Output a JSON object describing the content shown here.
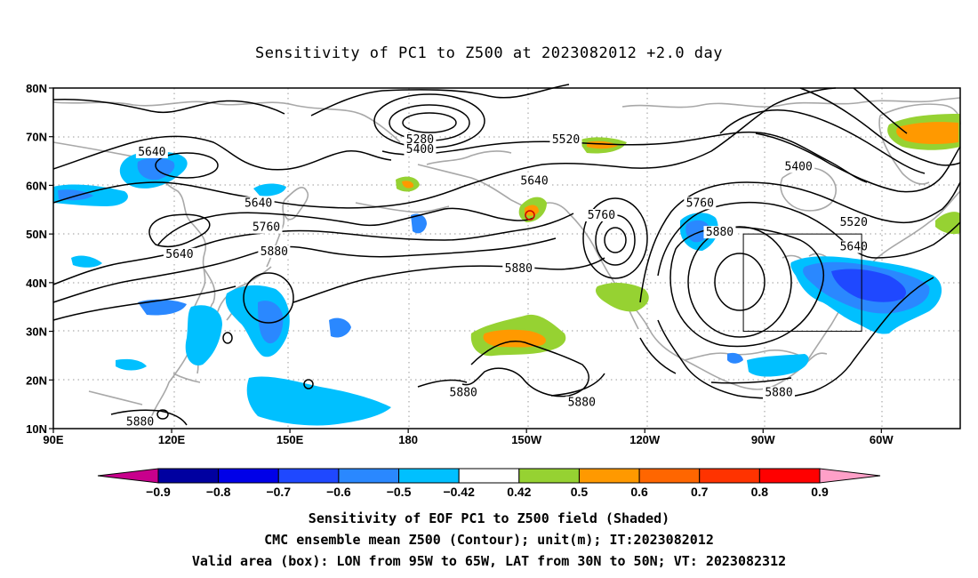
{
  "title": "Sensitivity of PC1 to Z500 at 2023082012 +2.0 day",
  "map": {
    "lat_ticks": [
      "80N",
      "70N",
      "60N",
      "50N",
      "40N",
      "30N",
      "20N",
      "10N"
    ],
    "lon_ticks": [
      "90E",
      "120E",
      "150E",
      "180",
      "150W",
      "120W",
      "90W",
      "60W"
    ],
    "contour_labels": [
      {
        "text": "5640",
        "lon": 115,
        "lat": 66.5
      },
      {
        "text": "5280",
        "lon": 183,
        "lat": 69
      },
      {
        "text": "5400",
        "lon": 183,
        "lat": 67
      },
      {
        "text": "5520",
        "lon": 220,
        "lat": 69
      },
      {
        "text": "5640",
        "lon": 212,
        "lat": 60.5
      },
      {
        "text": "5400",
        "lon": 279,
        "lat": 63.5
      },
      {
        "text": "5640",
        "lon": 142,
        "lat": 56
      },
      {
        "text": "5760",
        "lon": 144,
        "lat": 51
      },
      {
        "text": "5640",
        "lon": 122,
        "lat": 45.5
      },
      {
        "text": "5880",
        "lon": 146,
        "lat": 46
      },
      {
        "text": "5760",
        "lon": 229,
        "lat": 53.5
      },
      {
        "text": "5760",
        "lon": 254,
        "lat": 56
      },
      {
        "text": "5880",
        "lon": 259,
        "lat": 50
      },
      {
        "text": "5880",
        "lon": 208,
        "lat": 42.5
      },
      {
        "text": "5520",
        "lon": 293,
        "lat": 52
      },
      {
        "text": "5640",
        "lon": 293,
        "lat": 47
      },
      {
        "text": "5880",
        "lon": 194,
        "lat": 17
      },
      {
        "text": "5880",
        "lon": 224,
        "lat": 15
      },
      {
        "text": "5880",
        "lon": 274,
        "lat": 17
      },
      {
        "text": "5880",
        "lon": 112,
        "lat": 11
      }
    ],
    "valid_box": {
      "lon_min": 265,
      "lon_max": 295,
      "lat_min": 30,
      "lat_max": 50
    }
  },
  "colorbar": {
    "labels": [
      "-0.9",
      "-0.8",
      "-0.7",
      "-0.6",
      "-0.5",
      "-0.42",
      "0.42",
      "0.5",
      "0.6",
      "0.7",
      "0.8",
      "0.9"
    ],
    "colors": [
      "#c8008c",
      "#0000a0",
      "#0000e8",
      "#1f48ff",
      "#2a88ff",
      "#00c0ff",
      "#ffffff",
      "#96d232",
      "#ff9900",
      "#ff6600",
      "#ff3300",
      "#ff0000",
      "#ffa0c8"
    ]
  },
  "caption": {
    "line1": "Sensitivity of EOF PC1 to Z500 field (Shaded)",
    "line2": "CMC ensemble mean Z500 (Contour); unit(m); IT:2023082012",
    "line3": "Valid area (box): LON from 95W to 65W, LAT from 30N to 50N; VT: 2023082312"
  }
}
